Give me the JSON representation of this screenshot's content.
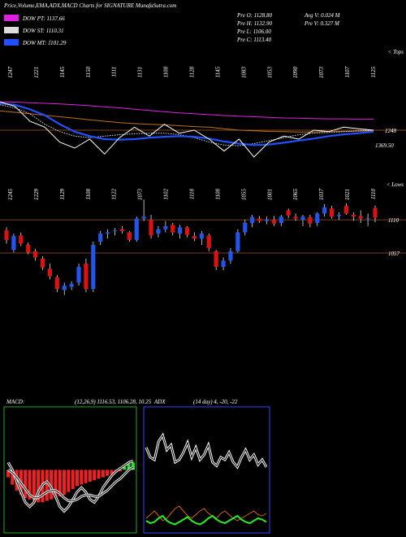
{
  "header": {
    "title": "Price,Volume,EMA,ADX,MACD Charts for SIGNATURE MunafaSutra.com",
    "stats": [
      "Pre  O: 1128.80",
      "Pre  H: 1132.90",
      "Pre  L: 1106.00",
      "Pre  C: 1113.40",
      "Avg V: 0.024  M",
      "Pre  V: 0.327  M"
    ]
  },
  "chart_data": [
    {
      "type": "line",
      "ylim": [
        950,
        1250
      ],
      "top_labels": [
        "1247",
        "1221",
        "1145",
        "1150",
        "1111",
        "1131",
        "1108",
        "1128",
        "1145",
        "1083",
        "1053",
        "1090",
        "1073",
        "1107",
        "1125"
      ],
      "corner_label": "< Tops",
      "right_labels": [
        "1248",
        "1369.50"
      ],
      "series": [
        {
          "name": "DOW PT: 1137.66",
          "color": "#e020e0",
          "values": [
            1195,
            1194,
            1192,
            1190,
            1188,
            1185,
            1182,
            1178,
            1175,
            1170,
            1166,
            1162,
            1158,
            1155,
            1152,
            1149,
            1147,
            1145,
            1143,
            1141,
            1140,
            1139,
            1138,
            1138,
            1137,
            1137
          ]
        },
        {
          "color": "#c07020",
          "values": [
            1165,
            1160,
            1155,
            1150,
            1145,
            1140,
            1135,
            1130,
            1125,
            1122,
            1120,
            1118,
            1115,
            1112,
            1110,
            1105,
            1100,
            1098,
            1096,
            1095,
            1094,
            1094,
            1095,
            1096,
            1097,
            1098
          ]
        },
        {
          "name": "DOW ST: 1110.31",
          "color": "#dddddd",
          "values": [
            1185,
            1175,
            1155,
            1120,
            1095,
            1080,
            1075,
            1080,
            1085,
            1088,
            1090,
            1090,
            1085,
            1075,
            1060,
            1050,
            1048,
            1055,
            1065,
            1075,
            1085,
            1090,
            1092,
            1095,
            1098,
            1100
          ]
        },
        {
          "name": "DOW MT: 1101.29",
          "color": "#2050ff",
          "values": [
            1190,
            1185,
            1170,
            1150,
            1120,
            1095,
            1080,
            1070,
            1068,
            1070,
            1075,
            1078,
            1080,
            1078,
            1072,
            1062,
            1055,
            1050,
            1052,
            1058,
            1065,
            1072,
            1080,
            1086,
            1090,
            1095
          ]
        },
        {
          "color": "#ffffff",
          "values": [
            1195,
            1180,
            1130,
            1110,
            1060,
            1040,
            1070,
            1020,
            1075,
            1110,
            1080,
            1120,
            1090,
            1100,
            1070,
            1030,
            1070,
            1010,
            1060,
            1080,
            1070,
            1100,
            1095,
            1110,
            1105,
            1100
          ]
        }
      ]
    },
    {
      "type": "candlestick",
      "ylim": [
        838,
        1162
      ],
      "up_color": "#2255ee",
      "down_color": "#dd1111",
      "low_labels": [
        "1245",
        "1229",
        "1129",
        "1108",
        "1122",
        "1073",
        "1102",
        "1118",
        "1108",
        "1055",
        "1001",
        "1065",
        "1037",
        "1021",
        "1110"
      ],
      "corner_label": "< Lows",
      "hlines": [
        1110,
        1057
      ],
      "open": [
        1093,
        1062,
        1085,
        1070,
        1060,
        1048,
        1032,
        1018,
        998,
        1003,
        1010,
        1040,
        1000,
        1075,
        1088,
        1092,
        1095,
        1090,
        1078,
        1112,
        1110,
        1088,
        1095,
        1102,
        1088,
        1098,
        1084,
        1080,
        1085,
        1060,
        1035,
        1045,
        1060,
        1090,
        1105,
        1112,
        1108,
        1110,
        1105,
        1125,
        1115,
        1110,
        1114,
        1105,
        1120,
        1128,
        1116,
        1132,
        1118,
        1116,
        1112,
        1128.8
      ],
      "high": [
        1098,
        1088,
        1090,
        1074,
        1064,
        1052,
        1040,
        1022,
        1010,
        1012,
        1040,
        1048,
        1075,
        1092,
        1095,
        1097,
        1100,
        1092,
        1115,
        1142,
        1118,
        1100,
        1108,
        1105,
        1102,
        1100,
        1090,
        1092,
        1088,
        1062,
        1050,
        1065,
        1095,
        1110,
        1118,
        1116,
        1115,
        1116,
        1118,
        1128,
        1120,
        1118,
        1118,
        1122,
        1135,
        1132,
        1122,
        1136,
        1122,
        1125,
        1120,
        1132.9
      ],
      "low": [
        1072,
        1058,
        1068,
        1055,
        1045,
        1030,
        1015,
        995,
        990,
        998,
        1005,
        995,
        995,
        1070,
        1080,
        1085,
        1088,
        1075,
        1075,
        1108,
        1080,
        1082,
        1090,
        1085,
        1080,
        1082,
        1076,
        1070,
        1060,
        1030,
        1030,
        1040,
        1058,
        1085,
        1098,
        1105,
        1103,
        1100,
        1100,
        1113,
        1108,
        1100,
        1098,
        1100,
        1115,
        1112,
        1110,
        1118,
        1108,
        1105,
        1100,
        1106
      ],
      "close": [
        1078,
        1084,
        1072,
        1058,
        1050,
        1034,
        1020,
        1000,
        1005,
        1008,
        1035,
        1000,
        1070,
        1088,
        1090,
        1093,
        1092,
        1078,
        1112,
        1115,
        1085,
        1095,
        1100,
        1090,
        1098,
        1086,
        1080,
        1088,
        1065,
        1035,
        1045,
        1060,
        1090,
        1105,
        1114,
        1108,
        1110,
        1104,
        1115,
        1117,
        1112,
        1115,
        1104,
        1120,
        1130,
        1115,
        1118,
        1120,
        1115,
        1112,
        1113,
        1113.4
      ]
    },
    {
      "type": "macd",
      "title": "MACD:",
      "subtitle": "(12,26,9) 1116.53, 1106.28, 10.25",
      "ylim": [
        -40,
        40
      ],
      "border": "#22aa22",
      "up_color": "#22dd22",
      "down_color": "#ee2222",
      "histogram": [
        -5,
        -10,
        -14,
        -17,
        -19,
        -20,
        -21,
        -22,
        -22,
        -21,
        -20,
        -19,
        -18,
        -17,
        -15,
        -13,
        -11,
        -10,
        -9,
        -8,
        -7,
        -6,
        -5,
        -4,
        -3,
        -2,
        -1,
        2,
        4,
        5
      ],
      "series": [
        {
          "color": "#000000",
          "values": [
            5,
            0,
            -8,
            -15,
            -22,
            -25,
            -22,
            -15,
            -10,
            -8,
            -12,
            -18,
            -25,
            -28,
            -25,
            -20,
            -15,
            -12,
            -15,
            -20,
            -22,
            -18,
            -12,
            -8,
            -4,
            -1,
            1,
            3,
            5,
            6
          ]
        },
        {
          "color": "#000000",
          "values": [
            0,
            -2,
            -5,
            -9,
            -13,
            -17,
            -19,
            -19,
            -17,
            -15,
            -14,
            -14,
            -16,
            -19,
            -21,
            -21,
            -20,
            -18,
            -17,
            -17,
            -18,
            -18,
            -16,
            -14,
            -11,
            -8,
            -6,
            -3,
            0,
            2
          ]
        }
      ]
    },
    {
      "type": "adx",
      "title": "ADX",
      "subtitle": "(14 day) 4, -20, -22",
      "ylim": [
        0,
        100
      ],
      "border": "#3344ff",
      "series": [
        {
          "color": "#000000",
          "values": [
            70,
            62,
            60,
            75,
            80,
            68,
            72,
            58,
            60,
            66,
            74,
            62,
            70,
            60,
            64,
            72,
            58,
            55,
            62,
            60,
            66,
            58,
            54,
            62,
            68,
            60,
            64,
            56,
            60,
            54
          ]
        },
        {
          "color": "#d06010",
          "values": [
            12,
            15,
            18,
            14,
            10,
            12,
            16,
            20,
            22,
            18,
            14,
            12,
            15,
            18,
            20,
            16,
            14,
            12,
            16,
            18,
            15,
            12,
            10,
            12,
            14,
            16,
            18,
            15,
            14,
            16
          ]
        },
        {
          "color": "#22ee22",
          "values": [
            10,
            8,
            9,
            12,
            14,
            10,
            8,
            7,
            9,
            11,
            13,
            10,
            8,
            7,
            9,
            12,
            14,
            11,
            9,
            8,
            10,
            12,
            14,
            11,
            9,
            8,
            10,
            12,
            11,
            9
          ]
        }
      ]
    }
  ]
}
